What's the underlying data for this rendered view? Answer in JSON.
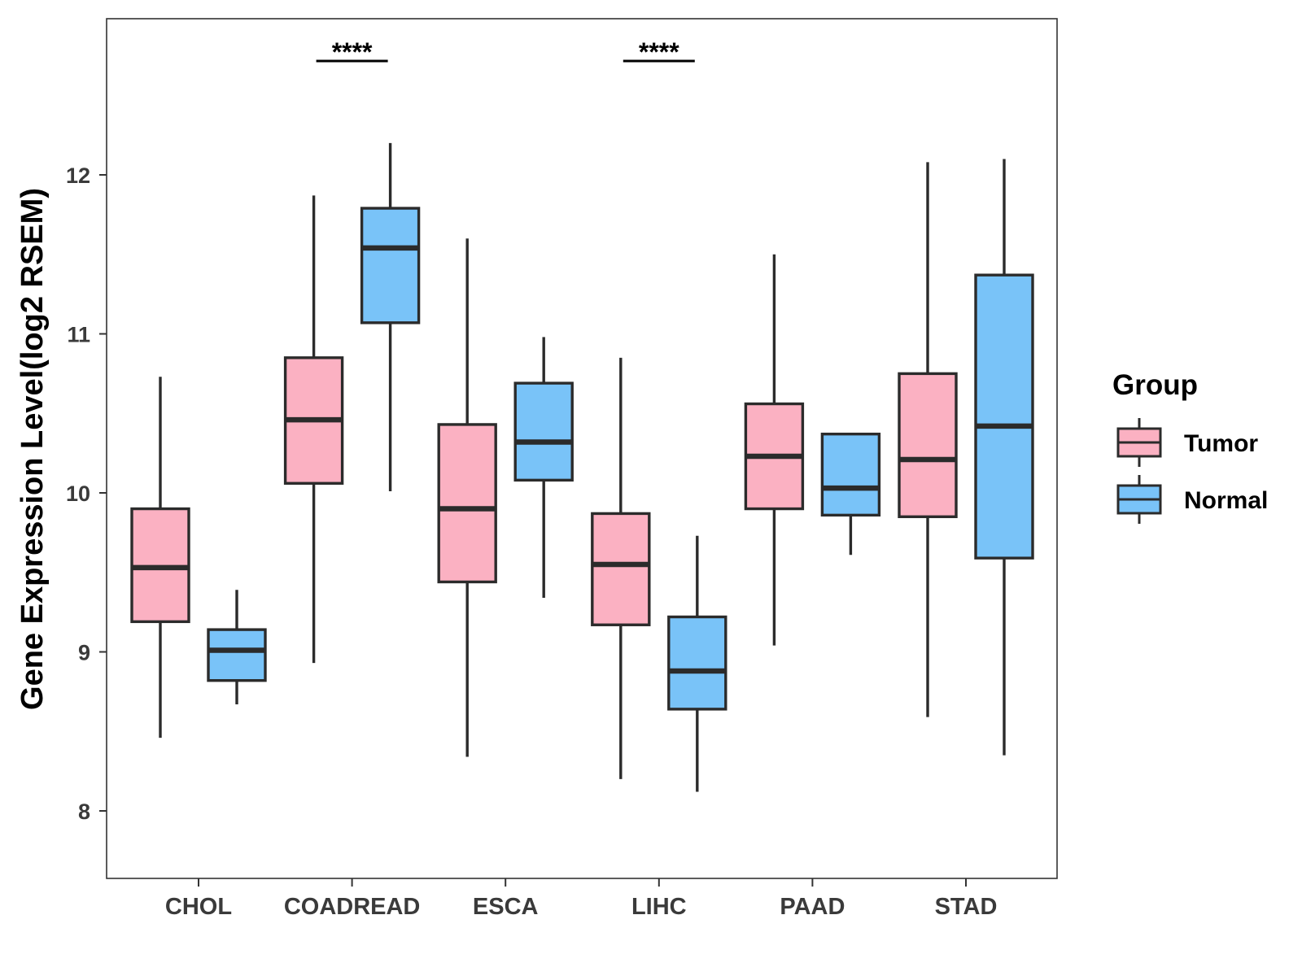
{
  "chart_data": {
    "type": "boxplot",
    "title": "",
    "xlabel": "",
    "ylabel": "Gene Expression Level(log2 RSEM)",
    "ylim": [
      7.6,
      13.0
    ],
    "yticks": [
      8,
      9,
      10,
      11,
      12
    ],
    "ytick_labels": [
      "8",
      "9",
      "10",
      "11",
      "12"
    ],
    "categories": [
      "CHOL",
      "COADREAD",
      "ESCA",
      "LIHC",
      "PAAD",
      "STAD"
    ],
    "grid": false,
    "legend": {
      "title": "Group",
      "position": "right",
      "entries": [
        "Tumor",
        "Normal"
      ]
    },
    "series": [
      {
        "name": "Tumor",
        "color": "#FBB1C2",
        "boxes": [
          {
            "category": "CHOL",
            "min": 8.46,
            "q1": 9.19,
            "median": 9.53,
            "q3": 9.9,
            "max": 10.73
          },
          {
            "category": "COADREAD",
            "min": 8.93,
            "q1": 10.06,
            "median": 10.46,
            "q3": 10.85,
            "max": 11.87
          },
          {
            "category": "ESCA",
            "min": 8.34,
            "q1": 9.44,
            "median": 9.9,
            "q3": 10.43,
            "max": 11.6
          },
          {
            "category": "LIHC",
            "min": 8.2,
            "q1": 9.17,
            "median": 9.55,
            "q3": 9.87,
            "max": 10.85
          },
          {
            "category": "PAAD",
            "min": 9.04,
            "q1": 9.9,
            "median": 10.23,
            "q3": 10.56,
            "max": 11.5
          },
          {
            "category": "STAD",
            "min": 8.59,
            "q1": 9.85,
            "median": 10.21,
            "q3": 10.75,
            "max": 12.08
          }
        ]
      },
      {
        "name": "Normal",
        "color": "#79C3F8",
        "boxes": [
          {
            "category": "CHOL",
            "min": 8.67,
            "q1": 8.82,
            "median": 9.01,
            "q3": 9.14,
            "max": 9.39
          },
          {
            "category": "COADREAD",
            "min": 10.01,
            "q1": 11.07,
            "median": 11.54,
            "q3": 11.79,
            "max": 12.2
          },
          {
            "category": "ESCA",
            "min": 9.34,
            "q1": 10.08,
            "median": 10.32,
            "q3": 10.69,
            "max": 10.98
          },
          {
            "category": "LIHC",
            "min": 8.12,
            "q1": 8.64,
            "median": 8.88,
            "q3": 9.22,
            "max": 9.73
          },
          {
            "category": "PAAD",
            "min": 9.61,
            "q1": 9.86,
            "median": 10.03,
            "q3": 10.37,
            "max": 10.37
          },
          {
            "category": "STAD",
            "min": 8.35,
            "q1": 9.59,
            "median": 10.42,
            "q3": 11.37,
            "max": 12.1
          }
        ]
      }
    ],
    "annotations": [
      {
        "category": "COADREAD",
        "text": "****"
      },
      {
        "category": "LIHC",
        "text": "****"
      }
    ],
    "colors": {
      "box_outline": "#2b2b2b",
      "panel_border": "#333333",
      "tick_label": "#3a3a3a"
    }
  }
}
